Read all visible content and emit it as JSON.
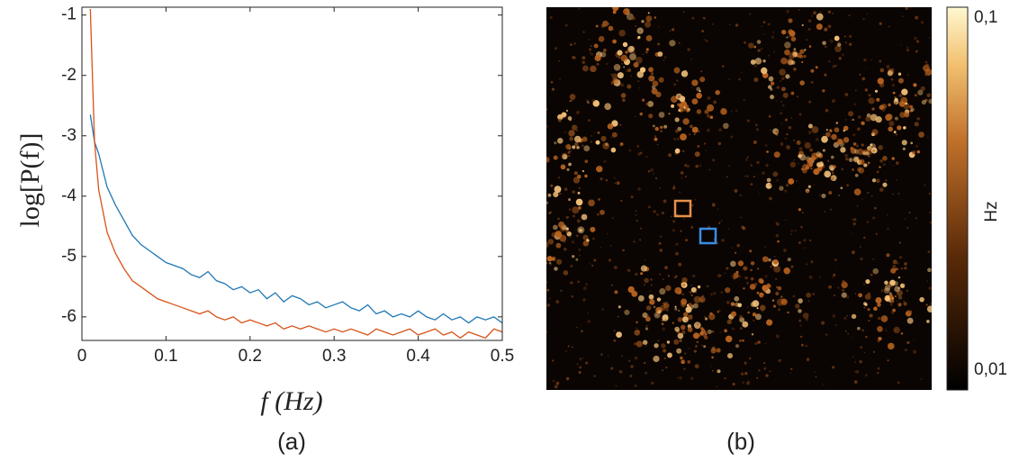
{
  "chart_data": [
    {
      "type": "line",
      "caption": "(a)",
      "xlabel": "f (Hz)",
      "ylabel": "log[P(f)]",
      "x": [
        0.01,
        0.015,
        0.02,
        0.03,
        0.04,
        0.05,
        0.06,
        0.07,
        0.08,
        0.09,
        0.1,
        0.11,
        0.12,
        0.13,
        0.14,
        0.15,
        0.16,
        0.17,
        0.18,
        0.19,
        0.2,
        0.21,
        0.22,
        0.23,
        0.24,
        0.25,
        0.26,
        0.27,
        0.28,
        0.29,
        0.3,
        0.31,
        0.32,
        0.33,
        0.34,
        0.35,
        0.36,
        0.37,
        0.38,
        0.39,
        0.4,
        0.41,
        0.42,
        0.43,
        0.44,
        0.45,
        0.46,
        0.47,
        0.48,
        0.49,
        0.5
      ],
      "series": [
        {
          "color": "#1f77b4",
          "values": [
            -2.65,
            -3.1,
            -3.3,
            -3.85,
            -4.15,
            -4.4,
            -4.65,
            -4.8,
            -4.9,
            -5.0,
            -5.1,
            -5.15,
            -5.2,
            -5.3,
            -5.35,
            -5.25,
            -5.4,
            -5.45,
            -5.55,
            -5.5,
            -5.6,
            -5.55,
            -5.7,
            -5.6,
            -5.75,
            -5.65,
            -5.7,
            -5.8,
            -5.75,
            -5.85,
            -5.8,
            -5.75,
            -5.85,
            -5.9,
            -5.8,
            -5.95,
            -5.9,
            -6.0,
            -5.95,
            -6.0,
            -5.9,
            -6.0,
            -6.05,
            -5.95,
            -6.05,
            -6.0,
            -6.1,
            -6.0,
            -6.05,
            -6.0,
            -6.1
          ]
        },
        {
          "color": "#d95319",
          "values": [
            -0.9,
            -3.1,
            -3.9,
            -4.6,
            -4.95,
            -5.2,
            -5.4,
            -5.5,
            -5.6,
            -5.7,
            -5.75,
            -5.8,
            -5.85,
            -5.9,
            -5.95,
            -5.9,
            -6.0,
            -6.05,
            -6.0,
            -6.1,
            -6.05,
            -6.1,
            -6.15,
            -6.1,
            -6.2,
            -6.15,
            -6.2,
            -6.15,
            -6.2,
            -6.25,
            -6.2,
            -6.25,
            -6.2,
            -6.25,
            -6.3,
            -6.2,
            -6.25,
            -6.3,
            -6.25,
            -6.2,
            -6.3,
            -6.25,
            -6.2,
            -6.3,
            -6.25,
            -6.35,
            -6.25,
            -6.3,
            -6.35,
            -6.2,
            -6.25
          ]
        }
      ],
      "xlim": [
        0,
        0.5
      ],
      "xticks": [
        0,
        0.1,
        0.2,
        0.3,
        0.4,
        0.5
      ],
      "ylim": [
        -6.39,
        -0.87
      ],
      "yticks": [
        -1,
        -2,
        -3,
        -4,
        -5,
        -6
      ]
    },
    {
      "type": "image",
      "caption": "(b)",
      "colorbar": {
        "label": "Hz",
        "log": true,
        "lim": [
          0.01,
          0.1
        ],
        "ticks": [
          {
            "value": 0.1,
            "label": "0,1"
          },
          {
            "value": 0.01,
            "label": "0,01"
          }
        ]
      }
    }
  ]
}
